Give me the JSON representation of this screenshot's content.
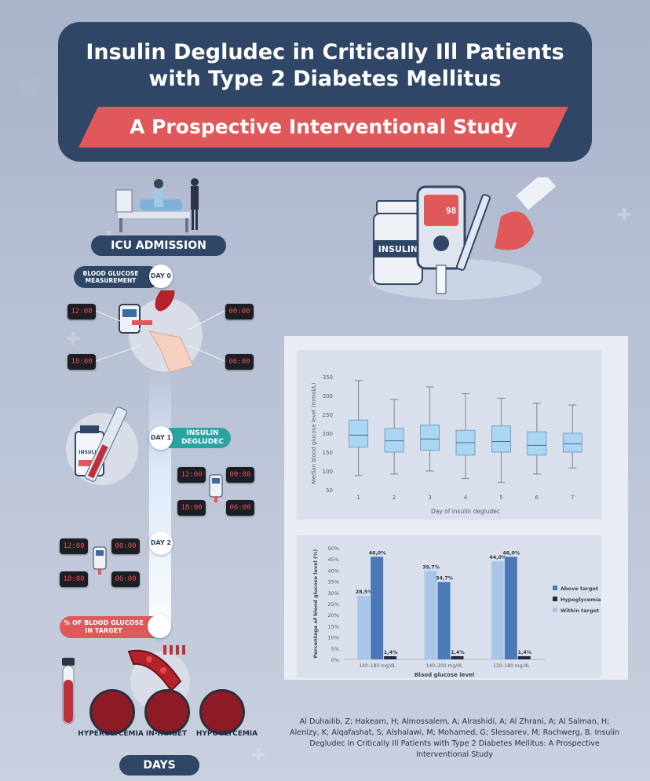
{
  "header": {
    "title_line1": "Insulin Degludec in Critically Ill Patients",
    "title_line2": "with Type 2 Diabetes Mellitus",
    "subtitle": "A Prospective Interventional Study"
  },
  "timeline": {
    "icu_admission": "ICU ADMISSION",
    "bg_measurement": "BLOOD GLUCOSE MEASUREMENT",
    "day0": "DAY 0",
    "day1": "DAY 1",
    "day2": "DAY 2",
    "insulin_degludec": "INSULIN DEGLUDEC",
    "pct_in_target": "% OF BLOOD GLUCOSE IN TARGET",
    "days": "DAYS",
    "clock_times": [
      "12:00",
      "00:00",
      "18:00",
      "06:00"
    ],
    "meter_reading": "98",
    "vial_label": "INSULIN",
    "bottle_label": "INSULIN",
    "outcomes": [
      "HYPERGLYCEMIA",
      "IN-TARGET",
      "HYPOGLYCEMIA"
    ]
  },
  "citation": "Al Duhailib, Z; Hakeam, H; Almossalem, A; Alrashidi, A; Al Zhrani, A; Al Salman, H; Alenizy, K; Alqafashat, S; Alshalawi, M; Mohamed, G; Slessarev, M; Rochwerg, B. Insulin Degludec in Critically Ill Patients with Type 2 Diabetes Mellitus: A Prospective Interventional Study",
  "chart_data": [
    {
      "type": "box",
      "xlabel": "Day of insulin degludec",
      "ylabel": "Median blood glucose level (mmol/L)",
      "ylim": [
        50,
        350
      ],
      "yticks": [
        50,
        100,
        150,
        200,
        250,
        300,
        350
      ],
      "categories": [
        "1",
        "2",
        "3",
        "4",
        "5",
        "6",
        "7"
      ],
      "boxes": [
        {
          "min": 88,
          "q1": 163,
          "median": 195,
          "q3": 235,
          "max": 340
        },
        {
          "min": 92,
          "q1": 150,
          "median": 180,
          "q3": 213,
          "max": 290
        },
        {
          "min": 100,
          "q1": 155,
          "median": 185,
          "q3": 222,
          "max": 323
        },
        {
          "min": 80,
          "q1": 142,
          "median": 175,
          "q3": 208,
          "max": 305
        },
        {
          "min": 70,
          "q1": 150,
          "median": 178,
          "q3": 220,
          "max": 293
        },
        {
          "min": 92,
          "q1": 142,
          "median": 168,
          "q3": 204,
          "max": 280
        },
        {
          "min": 108,
          "q1": 150,
          "median": 172,
          "q3": 200,
          "max": 275
        }
      ],
      "color": "#a9d6f2"
    },
    {
      "type": "bar",
      "xlabel": "Blood glucose level",
      "ylabel": "Percentage of blood glucose level (%)",
      "ylim": [
        0,
        50
      ],
      "yticks": [
        "0%",
        "5%",
        "10%",
        "15%",
        "20%",
        "25%",
        "30%",
        "35%",
        "40%",
        "45%",
        "50%"
      ],
      "categories": [
        "140–180 mg/dL",
        "140–200 mg/dL",
        "110–180 mg/dL"
      ],
      "series": [
        {
          "name": "Within target",
          "color": "#a9c6e8",
          "values": [
            28.5,
            39.7,
            44.0
          ],
          "labels": [
            "28,5%",
            "39,7%",
            "44,0%"
          ]
        },
        {
          "name": "Above target",
          "color": "#4a78b8",
          "values": [
            46.0,
            34.7,
            46.0
          ],
          "labels": [
            "46,0%",
            "34,7%",
            "46,0%"
          ]
        },
        {
          "name": "Hypoglycemia",
          "color": "#1f2a44",
          "values": [
            1.4,
            1.4,
            1.4
          ],
          "labels": [
            "1,4%",
            "1,4%",
            "1,4%"
          ]
        }
      ],
      "legend": [
        "Above target",
        "Hypoglycemia",
        "Within target"
      ],
      "legend_position": "right"
    }
  ]
}
